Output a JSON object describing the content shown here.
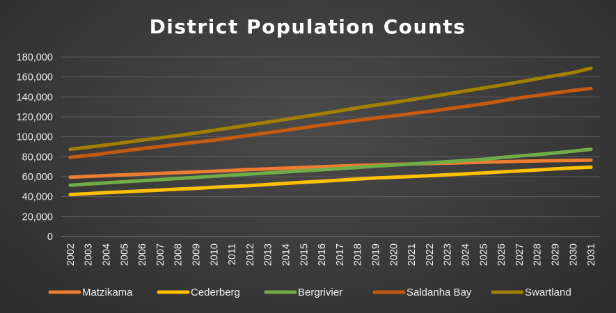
{
  "chart_data": {
    "type": "line",
    "title": "District Population Counts",
    "xlabel": "",
    "ylabel": "",
    "ylim": [
      0,
      180000
    ],
    "yticks": [
      "0",
      "20,000",
      "40,000",
      "60,000",
      "80,000",
      "100,000",
      "120,000",
      "140,000",
      "160,000",
      "180,000"
    ],
    "grid": true,
    "legend_position": "bottom",
    "x": [
      "2002",
      "2003",
      "2004",
      "2005",
      "2006",
      "2007",
      "2008",
      "2009",
      "2010",
      "2011",
      "2012",
      "2013",
      "2014",
      "2015",
      "2016",
      "2017",
      "2018",
      "2019",
      "2020",
      "2021",
      "2022",
      "2023",
      "2024",
      "2025",
      "2026",
      "2027",
      "2028",
      "2029",
      "2030",
      "2031"
    ],
    "series": [
      {
        "name": "Matzikama",
        "color": "#ED7D31",
        "values": [
          59500,
          60300,
          61100,
          61800,
          62500,
          63300,
          64000,
          64800,
          65500,
          66300,
          67100,
          67800,
          68500,
          69200,
          70000,
          70600,
          71200,
          71800,
          72300,
          72800,
          73200,
          73600,
          74000,
          74500,
          74900,
          75400,
          75800,
          76100,
          76300,
          76600
        ]
      },
      {
        "name": "Cederberg",
        "color": "#FFC000",
        "values": [
          42000,
          43000,
          44000,
          44800,
          45700,
          46600,
          47500,
          48300,
          49300,
          50200,
          51000,
          52200,
          53300,
          54400,
          55400,
          56500,
          57600,
          58700,
          59400,
          60200,
          61000,
          61900,
          62800,
          63800,
          64800,
          65800,
          66700,
          67800,
          68700,
          69500
        ]
      },
      {
        "name": "Bergrivier",
        "color": "#70AD47",
        "values": [
          51500,
          52700,
          53800,
          54900,
          56000,
          57100,
          58200,
          59300,
          60400,
          61500,
          62600,
          63700,
          64800,
          65900,
          67000,
          68100,
          69300,
          70500,
          71600,
          72700,
          73900,
          75000,
          76200,
          77400,
          79200,
          80700,
          82200,
          83800,
          85500,
          87500
        ]
      },
      {
        "name": "Saldanha Bay",
        "color": "#C55A11",
        "values": [
          79500,
          81300,
          83600,
          85900,
          88100,
          90300,
          92500,
          94500,
          96600,
          99000,
          101600,
          104000,
          106600,
          109200,
          111800,
          114200,
          116600,
          118800,
          121000,
          123300,
          125500,
          128000,
          130500,
          133000,
          136000,
          139000,
          141500,
          144000,
          146500,
          148500
        ]
      },
      {
        "name": "Swartland",
        "color": "#A37F00",
        "values": [
          87500,
          89600,
          91800,
          94200,
          96600,
          98900,
          101300,
          103800,
          106500,
          109200,
          112000,
          114700,
          117500,
          120300,
          123100,
          126100,
          129100,
          131800,
          134400,
          137200,
          140100,
          143000,
          145900,
          148900,
          151900,
          155000,
          158200,
          161300,
          164400,
          168800
        ]
      }
    ]
  }
}
